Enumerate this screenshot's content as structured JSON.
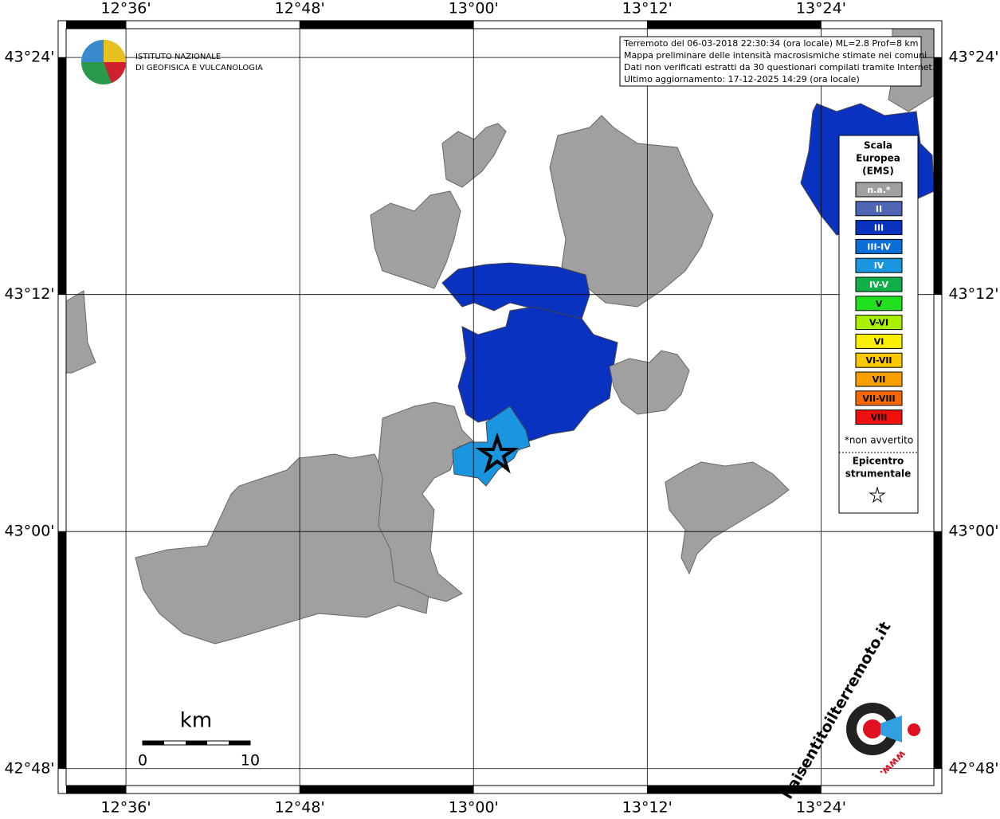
{
  "header": {
    "event_info": [
      "Terremoto del 06-03-2018 22:30:34 (ora locale) ML=2.8 Prof=8 km",
      "Mappa preliminare delle intensità macrosismiche stimate nei comuni",
      "Dati non verificati estratti da 30 questionari compilati tramite Internet.",
      "Ultimo aggiornamento: 17-12-2025 14:29 (ora locale)"
    ]
  },
  "logo_ingv": [
    "ISTITUTO NAZIONALE",
    "DI GEOFISICA E VULCANOLOGIA"
  ],
  "map": {
    "xlim": [
      12.522,
      13.539
    ],
    "ylim": [
      42.779,
      43.431
    ],
    "xticks": [
      {
        "value": 12.6,
        "label": "12°36'"
      },
      {
        "value": 12.8,
        "label": "12°48'"
      },
      {
        "value": 13.0,
        "label": "13°00'"
      },
      {
        "value": 13.2,
        "label": "13°12'"
      },
      {
        "value": 13.4,
        "label": "13°24'"
      }
    ],
    "yticks": [
      {
        "value": 43.4,
        "label": "43°24'"
      },
      {
        "value": 43.2,
        "label": "43°12'"
      },
      {
        "value": 43.0,
        "label": "43°00'"
      },
      {
        "value": 42.8,
        "label": "42°48'"
      }
    ]
  },
  "legend": {
    "title": [
      "Scala",
      "Europea",
      "(EMS)"
    ],
    "levels": [
      {
        "label": "n.a.*",
        "color": "#a0a0a0"
      },
      {
        "label": "II",
        "color": "#4f66b4"
      },
      {
        "label": "III",
        "color": "#0a32c0"
      },
      {
        "label": "III-IV",
        "color": "#0a6ed8"
      },
      {
        "label": "IV",
        "color": "#1a96e0"
      },
      {
        "label": "IV-V",
        "color": "#10b048"
      },
      {
        "label": "V",
        "color": "#20e020"
      },
      {
        "label": "V-VI",
        "color": "#a8f000"
      },
      {
        "label": "VI",
        "color": "#f8f000"
      },
      {
        "label": "VI-VII",
        "color": "#f8c800"
      },
      {
        "label": "VII",
        "color": "#f8a000"
      },
      {
        "label": "VII-VIII",
        "color": "#f86800"
      },
      {
        "label": "VIII",
        "color": "#f01010"
      }
    ],
    "note": "*non avvertito",
    "epicenter_label": [
      "Epicentro",
      "strumentale"
    ]
  },
  "scale_bar": {
    "unit": "km",
    "labels": [
      "0",
      "10"
    ]
  },
  "logo_hsit": [
    "haisentitoilterremoto.it",
    "www."
  ]
}
